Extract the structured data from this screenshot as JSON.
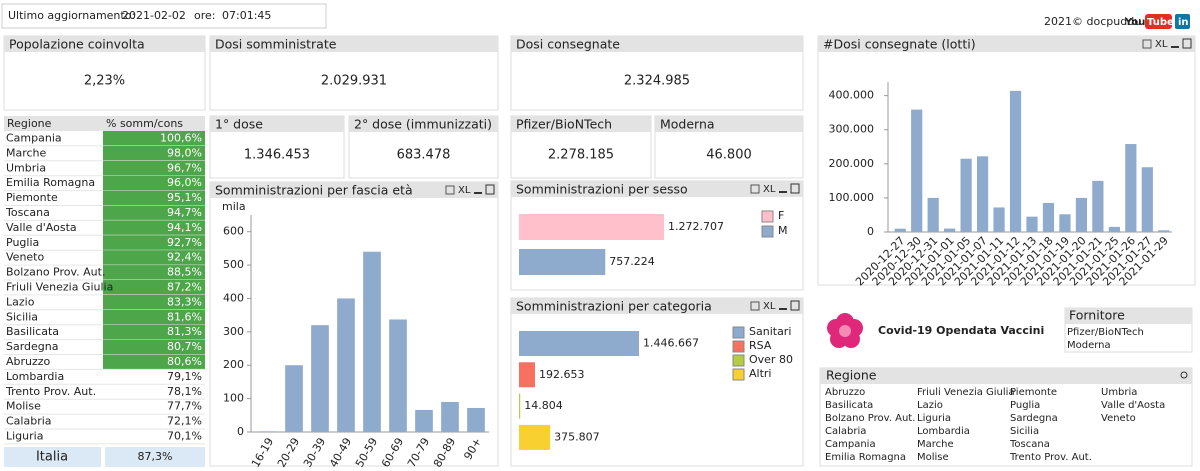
{
  "header": {
    "update_label": "Ultimo aggiornamento:",
    "update_date": "2021-02-02",
    "time_label": "ore:",
    "time": "07:01:45",
    "credit": "2021© docpuddu",
    "logo_you": "You",
    "logo_tube": "Tube",
    "logo_in": "in"
  },
  "toolbar_xl": "XL",
  "kpis": [
    {
      "title": "Popolazione coinvolta",
      "value": "2,23%"
    },
    {
      "title": "Dosi somministrate",
      "value": "2.029.931"
    },
    {
      "title": "Dosi consegnate",
      "value": "2.324.985"
    },
    {
      "title": "1° dose",
      "value": "1.346.453"
    },
    {
      "title": "2° dose (immunizzati)",
      "value": "683.478"
    },
    {
      "title": "Pfizer/BioNTech",
      "value": "2.278.185"
    },
    {
      "title": "Moderna",
      "value": "46.800"
    }
  ],
  "region_table": {
    "columns": [
      "Regione",
      "% somm/cons"
    ],
    "rows": [
      {
        "region": "Campania",
        "value": "100,6%",
        "color": "#4ea64a"
      },
      {
        "region": "Marche",
        "value": "98,0%",
        "color": "#4ea64a"
      },
      {
        "region": "Umbria",
        "value": "96,7%",
        "color": "#4ea64a"
      },
      {
        "region": "Emilia Romagna",
        "value": "96,0%",
        "color": "#4ea64a"
      },
      {
        "region": "Piemonte",
        "value": "95,1%",
        "color": "#4ea64a"
      },
      {
        "region": "Toscana",
        "value": "94,7%",
        "color": "#4ea64a"
      },
      {
        "region": "Valle d'Aosta",
        "value": "94,1%",
        "color": "#4ea64a"
      },
      {
        "region": "Puglia",
        "value": "92,7%",
        "color": "#4ea64a"
      },
      {
        "region": "Veneto",
        "value": "92,4%",
        "color": "#4ea64a"
      },
      {
        "region": "Bolzano Prov. Aut.",
        "value": "88,5%",
        "color": "#4ea64a"
      },
      {
        "region": "Friuli Venezia Giulia",
        "value": "87,2%",
        "color": "#4ea64a"
      },
      {
        "region": "Lazio",
        "value": "83,3%",
        "color": "#4ea64a"
      },
      {
        "region": "Sicilia",
        "value": "81,6%",
        "color": "#4ea64a"
      },
      {
        "region": "Basilicata",
        "value": "81,3%",
        "color": "#4ea64a"
      },
      {
        "region": "Sardegna",
        "value": "80,7%",
        "color": "#4ea64a"
      },
      {
        "region": "Abruzzo",
        "value": "80,6%",
        "color": "#4ea64a"
      },
      {
        "region": "Lombardia",
        "value": "79,1%"
      },
      {
        "region": "Trento Prov. Aut.",
        "value": "78,1%"
      },
      {
        "region": "Molise",
        "value": "77,7%"
      },
      {
        "region": "Calabria",
        "value": "72,1%"
      },
      {
        "region": "Liguria",
        "value": "70,1%"
      }
    ],
    "total": [
      "Italia",
      "87,3%"
    ]
  },
  "chart_data": [
    {
      "type": "bar",
      "title": "Somministrazioni per fascia età",
      "y_unit": "mila",
      "categories": [
        "16-19",
        "20-29",
        "30-39",
        "40-49",
        "50-59",
        "60-69",
        "70-79",
        "80-89",
        "90+"
      ],
      "values": [
        2,
        200,
        320,
        400,
        540,
        337,
        66,
        90,
        72
      ],
      "color": "#8eaacc",
      "ylim": [
        0,
        650
      ],
      "yticks": [
        0,
        100,
        200,
        300,
        400,
        500,
        600
      ]
    },
    {
      "type": "hbar",
      "title": "Somministrazioni per sesso",
      "categories": [
        "F",
        "M"
      ],
      "values": [
        1272707,
        757224
      ],
      "value_labels": [
        "1.272.707",
        "757.224"
      ],
      "colors": [
        "#ffc0cb",
        "#8eaacc"
      ]
    },
    {
      "type": "hbar",
      "title": "Somministrazioni per categoria",
      "categories": [
        "Sanitari",
        "RSA",
        "Over 80",
        "Altri"
      ],
      "values": [
        1446667,
        192653,
        14804,
        375807
      ],
      "value_labels": [
        "1.446.667",
        "192.653",
        "14.804",
        "375.807"
      ],
      "colors": [
        "#8eaacc",
        "#f87060",
        "#b5cc44",
        "#f8d030"
      ]
    },
    {
      "type": "bar",
      "title": "#Dosi consegnate (lotti)",
      "categories": [
        "2020-12-27",
        "2020-12-30",
        "2020-12-31",
        "2021-01-01",
        "2021-01-05",
        "2021-01-07",
        "2021-01-11",
        "2021-01-12",
        "2021-01-13",
        "2021-01-18",
        "2021-01-19",
        "2021-01-20",
        "2021-01-21",
        "2021-01-25",
        "2021-01-26",
        "2021-01-27",
        "2021-01-29"
      ],
      "values": [
        9750,
        359000,
        100000,
        10000,
        215000,
        222000,
        72000,
        414000,
        45000,
        85000,
        52000,
        100000,
        150000,
        15000,
        258000,
        190000,
        5000
      ],
      "color": "#8eaacc",
      "ylim": [
        0,
        440000
      ],
      "yticks": [
        0,
        {
          "value": 100000,
          "label": "100.000"
        },
        {
          "value": 200000,
          "label": "200.000"
        },
        {
          "value": 300000,
          "label": "300.000"
        },
        {
          "value": 400000,
          "label": "400.000"
        }
      ]
    }
  ],
  "brand": "Covid-19 Opendata Vaccini",
  "fornitore": {
    "title": "Fornitore",
    "items": [
      "Pfizer/BioNTech",
      "Moderna"
    ]
  },
  "regione_list": {
    "title": "Regione",
    "columns": [
      [
        "Abruzzo",
        "Basilicata",
        "Bolzano Prov. Aut.",
        "Calabria",
        "Campania",
        "Emilia Romagna"
      ],
      [
        "Friuli Venezia Giulia",
        "Lazio",
        "Liguria",
        "Lombardia",
        "Marche",
        "Molise"
      ],
      [
        "Piemonte",
        "Puglia",
        "Sardegna",
        "Sicilia",
        "Toscana",
        "Trento Prov. Aut."
      ],
      [
        "Umbria",
        "Valle d'Aosta",
        "Veneto"
      ]
    ]
  }
}
